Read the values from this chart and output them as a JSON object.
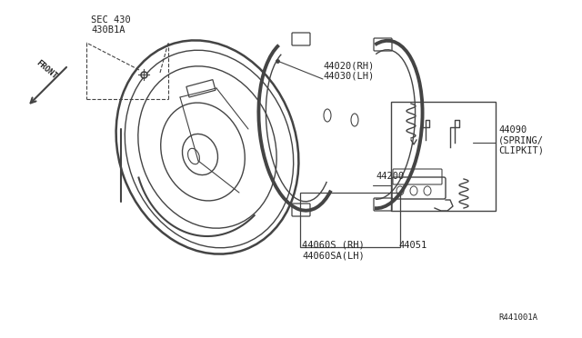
{
  "bg_color": "#ffffff",
  "line_color": "#444444",
  "text_color": "#222222",
  "fig_width": 6.4,
  "fig_height": 3.72,
  "dpi": 100,
  "labels": {
    "front": "FRONT",
    "sec430": "SEC 430",
    "part430b1a": "430B1A",
    "part44020": "44020(RH)",
    "part44030": "44030(LH)",
    "part44060s": "44060S (RH)",
    "part44060sa": "44060SA(LH)",
    "part44051": "44051",
    "part44200": "44200",
    "part44090": "44090",
    "part44090b": "(SPRING/",
    "part44090c": "CLIPKIT)",
    "ref": "R441001A"
  }
}
